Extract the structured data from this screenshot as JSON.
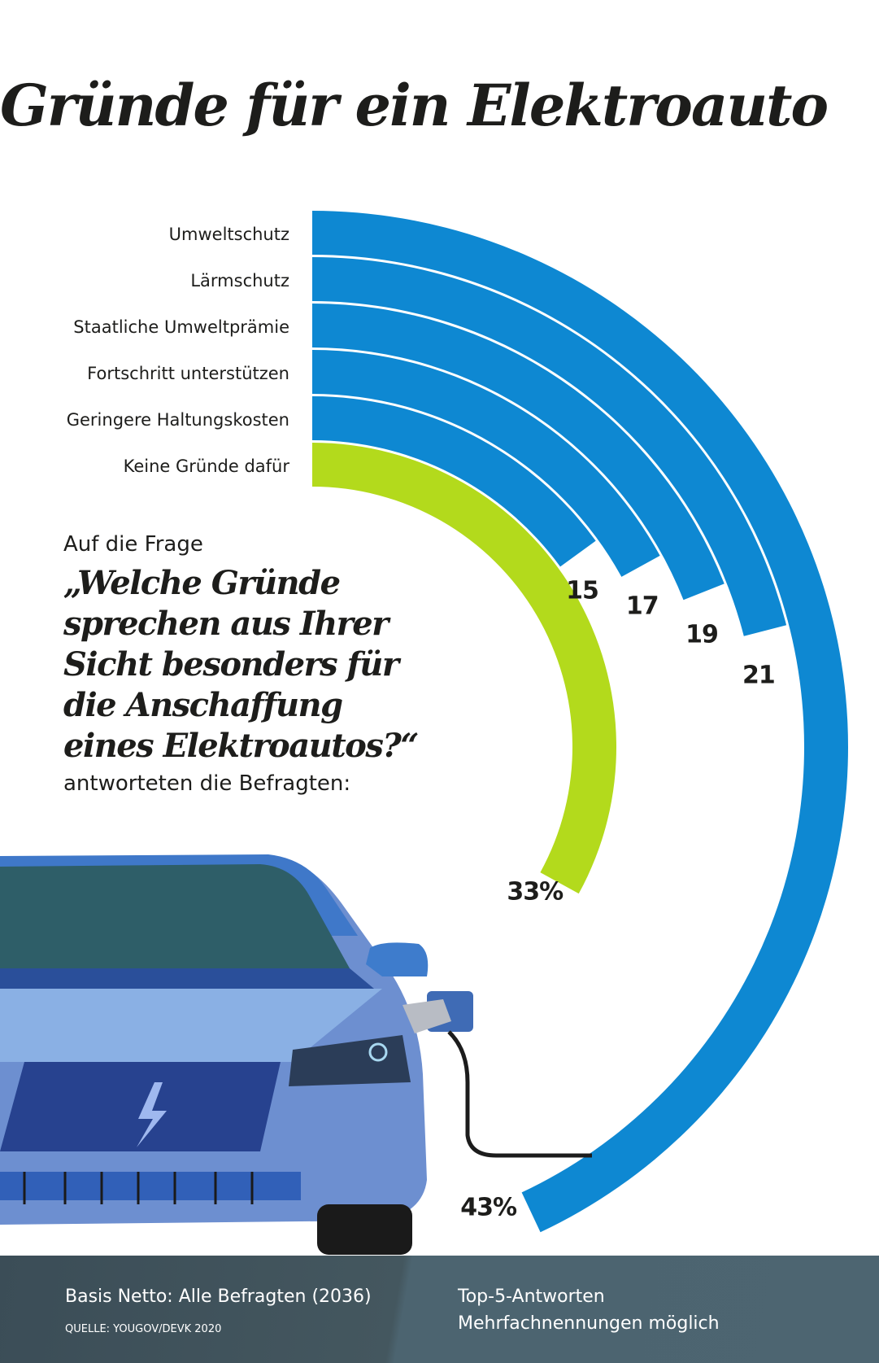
{
  "title": "Gründe für ein Elektroauto",
  "chart_data": {
    "type": "radial-bar",
    "title": "Gründe für ein Elektroauto",
    "categories": [
      "Umweltschutz",
      "Lärmschutz",
      "Staatliche Umweltprämie",
      "Fortschritt unterstützen",
      "Geringere Haltungskosten",
      "Keine Gründe dafür"
    ],
    "values": [
      43,
      21,
      19,
      17,
      15,
      33
    ],
    "value_labels": [
      "43%",
      "21",
      "19",
      "17",
      "15",
      "33%"
    ],
    "unit": "%",
    "colors": [
      "#0e88d2",
      "#0e88d2",
      "#0e88d2",
      "#0e88d2",
      "#0e88d2",
      "#b3da1c"
    ]
  },
  "question": {
    "intro": "Auf die Frage",
    "lines": [
      "„Welche Gründe",
      "sprechen aus Ihrer",
      "Sicht besonders für",
      "die Anschaffung",
      "eines Elektroautos?“"
    ],
    "outro": "antworteten die Befragten:"
  },
  "footer": {
    "basis": "Basis Netto: Alle Befragten (2036)",
    "source": "QUELLE: YOUGOV/DEVK 2020",
    "note1": "Top-5-Antworten",
    "note2": "Mehrfachnennungen möglich"
  }
}
